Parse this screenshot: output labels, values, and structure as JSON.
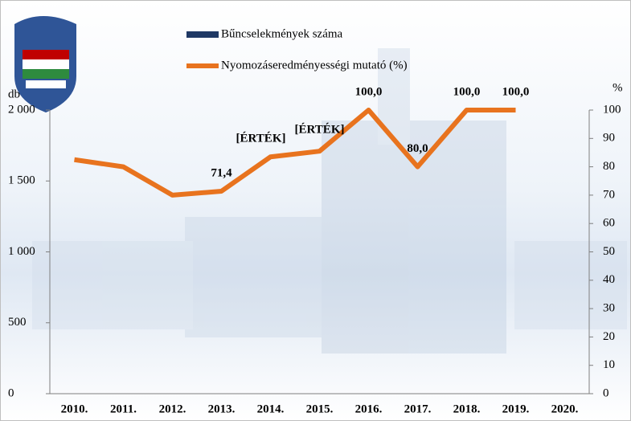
{
  "chart_data": {
    "type": "bar-line",
    "categories": [
      "2010.",
      "2011.",
      "2012.",
      "2013.",
      "2014.",
      "2015.",
      "2016.",
      "2017.",
      "2018.",
      "2019.",
      "2020."
    ],
    "series": [
      {
        "name": "Bűncselekmények száma",
        "color": "#1f3864",
        "type": "bar",
        "axis": "y",
        "values": [
          null,
          null,
          null,
          null,
          null,
          null,
          null,
          null,
          null,
          null,
          null
        ]
      },
      {
        "name": "Nyomozáseredményességi mutató (%)",
        "color": "#e8731e",
        "type": "line",
        "axis": "y2",
        "values": [
          82.5,
          80,
          70,
          71.4,
          83.5,
          85.5,
          100,
          80,
          100,
          100,
          null
        ],
        "value_labels": [
          null,
          null,
          null,
          "71,4",
          "[ÉRTÉK]",
          "[ÉRTÉK]",
          "100,0",
          "80,0",
          "100,0",
          "100,0",
          null
        ]
      }
    ],
    "y_label": "db",
    "y2_label": "%",
    "ylim": [
      0,
      2000
    ],
    "yticks": [
      0,
      500,
      {
        "value": 1000,
        "label": "1 000"
      },
      {
        "value": 1500,
        "label": "1 500"
      },
      {
        "value": 2000,
        "label": "2 000"
      }
    ],
    "y2lim": [
      0,
      100
    ],
    "y2ticks": [
      0,
      10,
      20,
      30,
      40,
      50,
      60,
      70,
      80,
      90,
      100
    ]
  }
}
